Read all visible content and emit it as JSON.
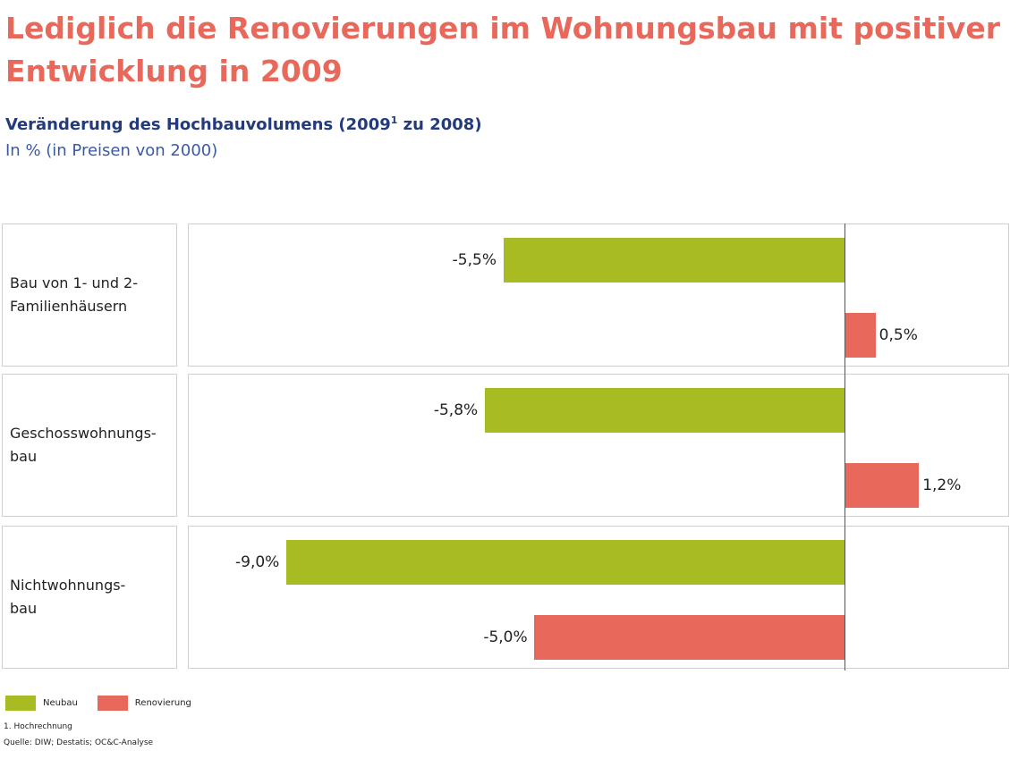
{
  "chart_data": {
    "type": "bar",
    "orientation": "horizontal",
    "title": "Lediglich die Renovierungen im Wohnungsbau mit positiver Entwicklung in 2009",
    "subtitle_main": "Veränderung des Hochbauvolumens (2009",
    "subtitle_sup": "1",
    "subtitle_end": " zu 2008)",
    "unit_label": "In % (in Preisen von 2000)",
    "categories": [
      "Bau von 1- und 2-\nFamilienhäusern",
      "Geschosswohnungs-\nbau",
      "Nichtwohnungs-\nbau"
    ],
    "series": [
      {
        "name": "Neubau",
        "color": "#a9bb22",
        "values": [
          -5.5,
          -5.8,
          -9.0
        ],
        "labels": [
          "-5,5%",
          "-5,8%",
          "-9,0%"
        ]
      },
      {
        "name": "Renovierung",
        "color": "#e8695c",
        "values": [
          0.5,
          1.2,
          -5.0
        ],
        "labels": [
          "0,5%",
          "1,2%",
          "-5,0%"
        ]
      }
    ],
    "xlim": [
      -9.0,
      2.6
    ],
    "grid": false,
    "legend_position": "bottom-left",
    "footnote": "1.    Hochrechnung",
    "source": "Quelle: DIW; Destatis; OC&C-Analyse"
  }
}
